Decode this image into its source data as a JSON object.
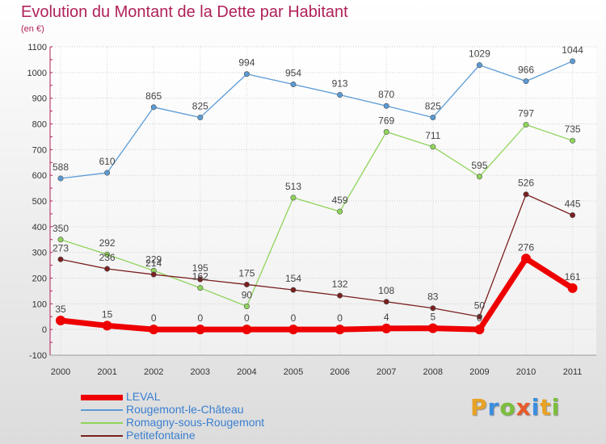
{
  "title": "Evolution du Montant de la Dette par Habitant",
  "subtitle": "(en €)",
  "logo": {
    "letters": [
      "P",
      "r",
      "o",
      "x",
      "i",
      "t",
      "i"
    ],
    "colors": [
      "#e8a325",
      "#3a8ee0",
      "#7bbf3a",
      "#e85a2a",
      "#3a8ee0",
      "#e8a325",
      "#7bbf3a"
    ]
  },
  "chart_data": {
    "type": "line",
    "x": [
      "2000",
      "2001",
      "2002",
      "2003",
      "2004",
      "2005",
      "2006",
      "2007",
      "2008",
      "2009",
      "2010",
      "2011"
    ],
    "ylim": [
      -100,
      1100
    ],
    "yticks": [
      "-100",
      "0",
      "100",
      "200",
      "300",
      "400",
      "500",
      "600",
      "700",
      "800",
      "900",
      "1000",
      "1100"
    ],
    "grid": true,
    "legend_position": "bottom-left",
    "series": [
      {
        "name": "LEVAL",
        "color": "#ee0000",
        "values": [
          35,
          15,
          0,
          0,
          0,
          0,
          0,
          4,
          5,
          0,
          276,
          161
        ],
        "labels": [
          "35",
          "15",
          "0",
          "0",
          "0",
          "0",
          "0",
          "4",
          "5",
          "0",
          "276",
          "161"
        ]
      },
      {
        "name": "Rougemont-le-Château",
        "color": "#5b9bd5",
        "values": [
          588,
          610,
          865,
          825,
          994,
          954,
          913,
          870,
          825,
          1029,
          966,
          1044
        ],
        "labels": [
          "588",
          "610",
          "865",
          "825",
          "994",
          "954",
          "913",
          "870",
          "825",
          "1029",
          "966",
          "1044"
        ]
      },
      {
        "name": "Romagny-sous-Rougemont",
        "color": "#8fd45a",
        "values": [
          350,
          292,
          229,
          162,
          90,
          513,
          459,
          769,
          711,
          595,
          797,
          735
        ],
        "labels": [
          "350",
          "292",
          "229",
          "162",
          "90",
          "513",
          "459",
          "769",
          "711",
          "595",
          "797",
          "735"
        ]
      },
      {
        "name": "Petitefontaine",
        "color": "#7a1f1f",
        "values": [
          273,
          236,
          214,
          195,
          175,
          154,
          132,
          108,
          83,
          50,
          526,
          445
        ],
        "labels": [
          "273",
          "236",
          "214",
          "195",
          "175",
          "154",
          "132",
          "108",
          "83",
          "50",
          "526",
          "445"
        ]
      }
    ]
  }
}
